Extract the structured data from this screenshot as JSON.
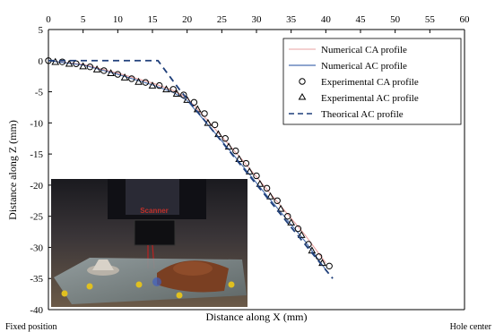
{
  "chart_data": {
    "type": "line",
    "title": "",
    "xlabel": "Distance along X (mm)",
    "ylabel": "Distance along Z (mm)",
    "xlim": [
      0,
      60
    ],
    "ylim": [
      -40,
      5
    ],
    "x_ticks": [
      0,
      5,
      10,
      15,
      20,
      25,
      30,
      35,
      40,
      45,
      50,
      55,
      60
    ],
    "y_ticks": [
      5,
      0,
      -5,
      -10,
      -15,
      -20,
      -25,
      -30,
      -35,
      -40
    ],
    "x_tick_position": "top",
    "grid": false,
    "legend_position": "top-right",
    "series": [
      {
        "name": "Numerical CA profile",
        "style": "line",
        "color": "#e8a0a0",
        "x": [
          0,
          5,
          10,
          15,
          18,
          20,
          22,
          25,
          28,
          31,
          34,
          37,
          40
        ],
        "y": [
          0,
          -0.6,
          -2.0,
          -3.6,
          -4.8,
          -6.0,
          -8.4,
          -12.2,
          -16.0,
          -20.0,
          -24.0,
          -28.0,
          -32.5
        ]
      },
      {
        "name": "Numerical AC profile",
        "style": "line",
        "color": "#4a6fb0",
        "x": [
          0,
          5,
          10,
          15,
          18,
          20,
          22,
          25,
          28,
          31,
          34,
          37,
          40
        ],
        "y": [
          0,
          -0.7,
          -2.2,
          -3.9,
          -5.1,
          -6.4,
          -9.0,
          -12.9,
          -16.9,
          -21.0,
          -25.0,
          -29.0,
          -33.6
        ]
      },
      {
        "name": "Experimental CA profile",
        "style": "marker-circle",
        "color": "#000000",
        "x": [
          0,
          2,
          4,
          6,
          8,
          10,
          12,
          14,
          16,
          18,
          19.5,
          21,
          22.5,
          24,
          25.5,
          27,
          28.5,
          30,
          31.5,
          33,
          34.5,
          36,
          37.5,
          39,
          40.5
        ],
        "y": [
          0,
          -0.2,
          -0.5,
          -1.0,
          -1.6,
          -2.2,
          -2.9,
          -3.5,
          -4.0,
          -4.6,
          -5.5,
          -6.7,
          -8.5,
          -10.3,
          -12.5,
          -14.5,
          -16.5,
          -18.5,
          -20.5,
          -22.5,
          -25.0,
          -27.0,
          -29.5,
          -31.5,
          -33.0
        ]
      },
      {
        "name": "Experimental AC profile",
        "style": "marker-triangle",
        "color": "#000000",
        "x": [
          1,
          3,
          5,
          7,
          9,
          11,
          13,
          15,
          17,
          18.5,
          20,
          21.5,
          23,
          24.5,
          26,
          27.5,
          29,
          30.5,
          32,
          33.5,
          35,
          36.5,
          38,
          39.5
        ],
        "y": [
          -0.2,
          -0.5,
          -0.9,
          -1.4,
          -2.0,
          -2.7,
          -3.4,
          -4.0,
          -4.6,
          -5.3,
          -6.3,
          -7.8,
          -10.0,
          -11.8,
          -13.8,
          -15.8,
          -17.8,
          -19.8,
          -21.8,
          -23.8,
          -26.0,
          -28.0,
          -30.5,
          -32.5
        ]
      },
      {
        "name": "Theorical AC profile",
        "style": "dashed-line",
        "color": "#1f3f7a",
        "x": [
          0,
          15.8,
          18.8,
          41
        ],
        "y": [
          0,
          0,
          -4.5,
          -35
        ]
      }
    ],
    "annotations": [
      "Fixed position",
      "Hole center"
    ],
    "inset_photo_label": "Scanner"
  }
}
